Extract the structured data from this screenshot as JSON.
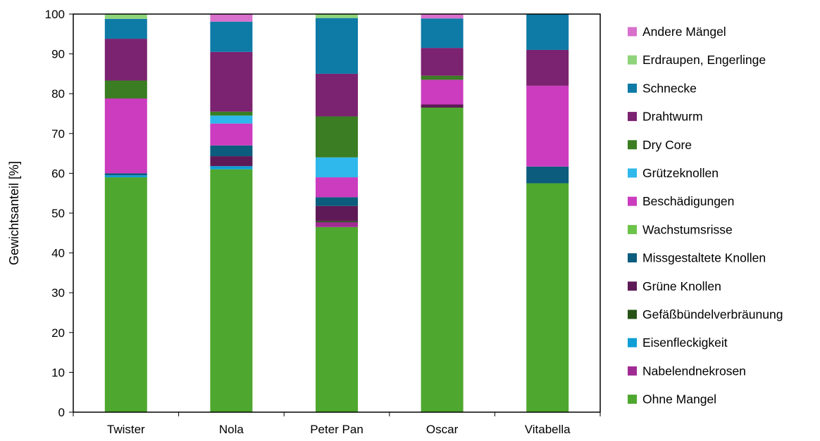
{
  "chart_data": {
    "type": "bar",
    "stacked": true,
    "title": "",
    "xlabel": "",
    "ylabel": "Gewichtsanteil [%]",
    "ylim": [
      0,
      100
    ],
    "yticks": [
      0,
      10,
      20,
      30,
      40,
      50,
      60,
      70,
      80,
      90,
      100
    ],
    "grid": false,
    "legend_position": "right",
    "legend_order": "reverse",
    "categories": [
      "Twister",
      "Nola",
      "Peter Pan",
      "Oscar",
      "Vitabella"
    ],
    "series": [
      {
        "name": "Ohne Mangel",
        "color": "#4ea72e",
        "values": [
          59.0,
          61.0,
          46.5,
          76.5,
          57.5
        ]
      },
      {
        "name": "Nabelendnekrosen",
        "color": "#a02b93",
        "values": [
          0.0,
          0.0,
          1.2,
          0.0,
          0.0
        ]
      },
      {
        "name": "Eisenfleckigkeit",
        "color": "#0f9ed5",
        "values": [
          0.5,
          0.8,
          0.0,
          0.0,
          0.0
        ]
      },
      {
        "name": "Gefäßbündelverbräunung",
        "color": "#275317",
        "values": [
          0.0,
          0.0,
          0.3,
          0.0,
          0.0
        ]
      },
      {
        "name": "Grüne Knollen",
        "color": "#5e1a57",
        "values": [
          0.0,
          2.5,
          3.8,
          0.8,
          0.0
        ]
      },
      {
        "name": "Missgestaltete Knollen",
        "color": "#0b5c7d",
        "values": [
          0.5,
          2.7,
          2.2,
          0.0,
          4.2
        ]
      },
      {
        "name": "Wachstumsrisse",
        "color": "#6cc34a",
        "values": [
          0.0,
          0.0,
          0.0,
          0.0,
          0.0
        ]
      },
      {
        "name": "Beschädigungen",
        "color": "#cb3cbe",
        "values": [
          18.8,
          5.5,
          5.0,
          6.2,
          20.3
        ]
      },
      {
        "name": "Grützeknollen",
        "color": "#2fb8eb",
        "values": [
          0.0,
          2.0,
          5.0,
          0.0,
          0.0
        ]
      },
      {
        "name": "Dry Core",
        "color": "#3a7d22",
        "values": [
          4.5,
          1.0,
          10.3,
          1.0,
          0.0
        ]
      },
      {
        "name": "Drahtwurm",
        "color": "#7b2270",
        "values": [
          10.5,
          15.0,
          10.7,
          7.0,
          9.0
        ]
      },
      {
        "name": "Schnecke",
        "color": "#0e7aa6",
        "values": [
          5.0,
          7.6,
          14.0,
          7.4,
          9.0
        ]
      },
      {
        "name": "Erdraupen, Engerlinge",
        "color": "#8fd47a",
        "values": [
          1.2,
          0.0,
          1.0,
          0.0,
          0.0
        ]
      },
      {
        "name": "Andere Mängel",
        "color": "#d870cc",
        "values": [
          0.0,
          1.9,
          0.0,
          1.1,
          0.0
        ]
      }
    ]
  }
}
